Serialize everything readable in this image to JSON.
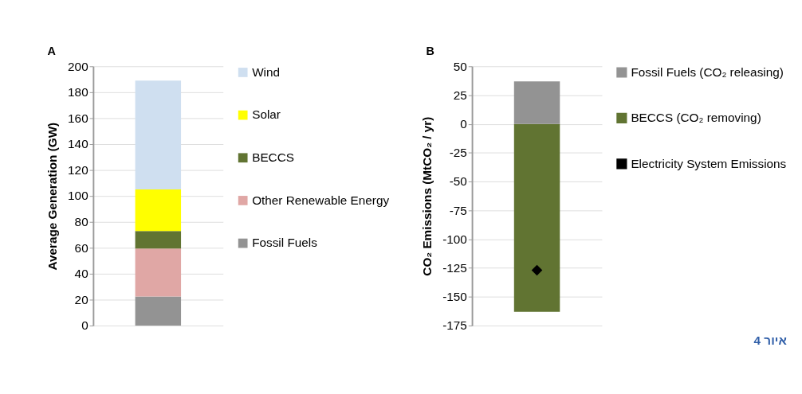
{
  "chart_data": [
    {
      "type": "bar",
      "title": "A",
      "ylabel": "Average Generation (GW)",
      "categories": [
        null
      ],
      "stacked": true,
      "ylim": [
        0,
        200
      ],
      "yticks": [
        0,
        20,
        40,
        60,
        80,
        100,
        120,
        140,
        160,
        180,
        200
      ],
      "grid": "y",
      "legend": "right",
      "tick_labels": "y",
      "series": [
        {
          "name": "Fossil Fuels",
          "color": "#939393",
          "values": [
            22.5
          ]
        },
        {
          "name": "Other Renewable Energy",
          "color": "#e0a7a5",
          "values": [
            37
          ]
        },
        {
          "name": "BECCS",
          "color": "#617432",
          "values": [
            13.5
          ]
        },
        {
          "name": "Solar",
          "color": "#ffff00",
          "values": [
            32
          ]
        },
        {
          "name": "Wind",
          "color": "#cfdff0",
          "values": [
            84
          ]
        }
      ]
    },
    {
      "type": "bar",
      "title": "B",
      "ylabel": "CO₂ Emissions (MtCO₂ / yr)",
      "categories": [
        null
      ],
      "stacked": true,
      "ylim": [
        -175,
        50
      ],
      "yticks": [
        -175,
        -150,
        -125,
        -100,
        -75,
        -50,
        -25,
        0,
        25,
        50
      ],
      "grid": "y",
      "legend": "right",
      "tick_labels": "y",
      "annotations": [
        "איור 4"
      ],
      "series": [
        {
          "name": "BECCS (CO₂ removing)",
          "color": "#617432",
          "values": [
            -163
          ]
        },
        {
          "name": "Fossil Fuels (CO₂ releasing)",
          "color": "#939393",
          "values": [
            37
          ]
        },
        {
          "name": "Electricity System Emissions",
          "color": "#000000",
          "type": "line",
          "marker": "diamond",
          "values": [
            -127
          ]
        }
      ]
    }
  ]
}
